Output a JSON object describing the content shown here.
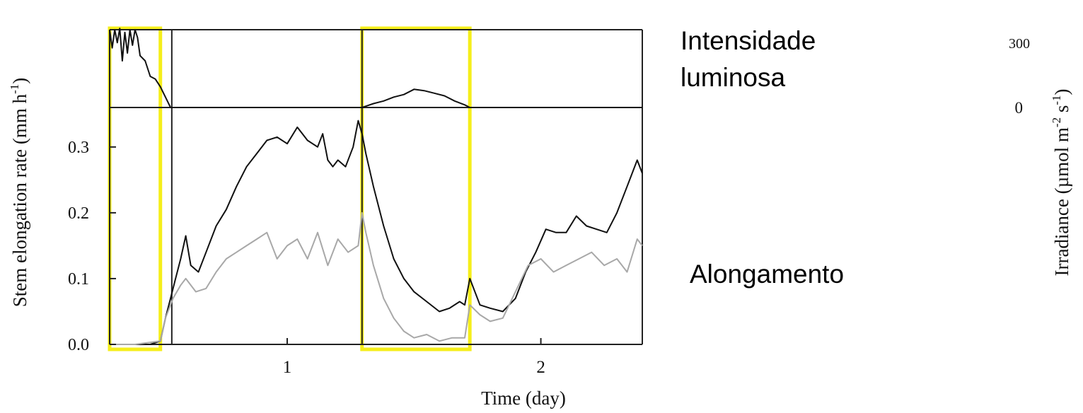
{
  "chart_data": {
    "type": "line",
    "xlabel": "Time (day)",
    "ylabel": "Stem elongation rate (mm h",
    "ylabel_sup": "-1",
    "ylabel_close": ")",
    "irr_label": "Irradiance (µmol m",
    "irr_sup1": "-2",
    "irr_mid": " s",
    "irr_sup2": "-1",
    "irr_close": ")",
    "x_ticks": [
      {
        "value": 1,
        "label": "1"
      },
      {
        "value": 2,
        "label": "2"
      }
    ],
    "xlim": [
      0.3,
      2.4
    ],
    "y_ticks": [
      {
        "value": 0.0,
        "label": "0.0"
      },
      {
        "value": 0.1,
        "label": "0.1"
      },
      {
        "value": 0.2,
        "label": "0.2"
      },
      {
        "value": 0.3,
        "label": "0.3"
      }
    ],
    "ylim": [
      0.0,
      0.36
    ],
    "irr_ticks": [
      {
        "value": 0,
        "label": "0"
      },
      {
        "value": 300,
        "label": "300"
      }
    ],
    "irr_lim": [
      0,
      300
    ],
    "annotations": {
      "light": [
        "Intensidade",
        "luminosa"
      ],
      "elongation": "Alongamento"
    },
    "highlight_color": "#f5ee1a",
    "highlights": [
      [
        0.3,
        0.5
      ],
      [
        1.295,
        1.72
      ]
    ],
    "series": [
      {
        "color": "#111111",
        "x": [
          0.3,
          0.34,
          0.38,
          0.42,
          0.46,
          0.5,
          0.52,
          0.54,
          0.56,
          0.58,
          0.6,
          0.62,
          0.65,
          0.68,
          0.72,
          0.76,
          0.8,
          0.84,
          0.88,
          0.92,
          0.96,
          1.0,
          1.04,
          1.08,
          1.12,
          1.14,
          1.16,
          1.18,
          1.2,
          1.23,
          1.26,
          1.28,
          1.295,
          1.31,
          1.34,
          1.38,
          1.42,
          1.46,
          1.5,
          1.55,
          1.6,
          1.64,
          1.68,
          1.7,
          1.72,
          1.76,
          1.8,
          1.85,
          1.9,
          1.94,
          1.98,
          2.02,
          2.06,
          2.1,
          2.14,
          2.18,
          2.22,
          2.26,
          2.3,
          2.34,
          2.38,
          2.4
        ],
        "y": [
          0.0,
          0.0,
          0.0,
          0.0,
          0.0,
          0.005,
          0.04,
          0.07,
          0.1,
          0.13,
          0.165,
          0.12,
          0.11,
          0.14,
          0.18,
          0.205,
          0.24,
          0.27,
          0.29,
          0.31,
          0.315,
          0.305,
          0.33,
          0.31,
          0.3,
          0.32,
          0.28,
          0.27,
          0.28,
          0.27,
          0.3,
          0.34,
          0.32,
          0.29,
          0.24,
          0.18,
          0.13,
          0.1,
          0.08,
          0.065,
          0.05,
          0.055,
          0.065,
          0.06,
          0.1,
          0.06,
          0.055,
          0.05,
          0.07,
          0.11,
          0.14,
          0.175,
          0.17,
          0.17,
          0.195,
          0.18,
          0.175,
          0.17,
          0.2,
          0.24,
          0.28,
          0.26
        ]
      },
      {
        "color": "#a8a8a8",
        "x": [
          0.3,
          0.4,
          0.5,
          0.52,
          0.55,
          0.58,
          0.6,
          0.64,
          0.68,
          0.72,
          0.76,
          0.8,
          0.84,
          0.88,
          0.92,
          0.96,
          1.0,
          1.04,
          1.08,
          1.12,
          1.16,
          1.2,
          1.24,
          1.28,
          1.295,
          1.31,
          1.34,
          1.38,
          1.42,
          1.46,
          1.5,
          1.55,
          1.6,
          1.65,
          1.7,
          1.72,
          1.76,
          1.8,
          1.85,
          1.9,
          1.95,
          2.0,
          2.05,
          2.1,
          2.15,
          2.2,
          2.25,
          2.3,
          2.34,
          2.38,
          2.4
        ],
        "y": [
          0.0,
          0.0,
          0.005,
          0.04,
          0.07,
          0.09,
          0.1,
          0.08,
          0.085,
          0.11,
          0.13,
          0.14,
          0.15,
          0.16,
          0.17,
          0.13,
          0.15,
          0.16,
          0.13,
          0.17,
          0.12,
          0.16,
          0.14,
          0.15,
          0.2,
          0.17,
          0.12,
          0.07,
          0.04,
          0.02,
          0.01,
          0.015,
          0.005,
          0.01,
          0.01,
          0.06,
          0.045,
          0.035,
          0.04,
          0.08,
          0.12,
          0.13,
          0.11,
          0.12,
          0.13,
          0.14,
          0.12,
          0.13,
          0.11,
          0.16,
          0.15
        ]
      },
      {
        "color": "#111111",
        "axis": "irradiance",
        "x": [
          0.3,
          0.31,
          0.32,
          0.33,
          0.34,
          0.35,
          0.36,
          0.37,
          0.38,
          0.39,
          0.4,
          0.41,
          0.42,
          0.44,
          0.46,
          0.48,
          0.5,
          0.52,
          0.54,
          0.56,
          0.6,
          0.65,
          0.7,
          0.75,
          0.8,
          0.85,
          0.9,
          0.95,
          1.0,
          1.05,
          1.1,
          1.15,
          1.2,
          1.25,
          1.28,
          1.295,
          1.31,
          1.34,
          1.38,
          1.42,
          1.46,
          1.5,
          1.54,
          1.58,
          1.62,
          1.66,
          1.7,
          1.72,
          1.8,
          1.9,
          2.0,
          2.1,
          2.2,
          2.3,
          2.4
        ],
        "y": [
          300,
          230,
          300,
          250,
          305,
          180,
          290,
          210,
          300,
          240,
          300,
          270,
          200,
          180,
          120,
          110,
          80,
          40,
          0,
          0,
          0,
          0,
          0,
          0,
          0,
          0,
          0,
          0,
          0,
          0,
          0,
          0,
          0,
          0,
          0,
          0,
          5,
          15,
          25,
          40,
          50,
          70,
          65,
          55,
          45,
          25,
          10,
          0,
          0,
          0,
          0,
          0,
          0,
          0,
          0
        ]
      }
    ]
  }
}
